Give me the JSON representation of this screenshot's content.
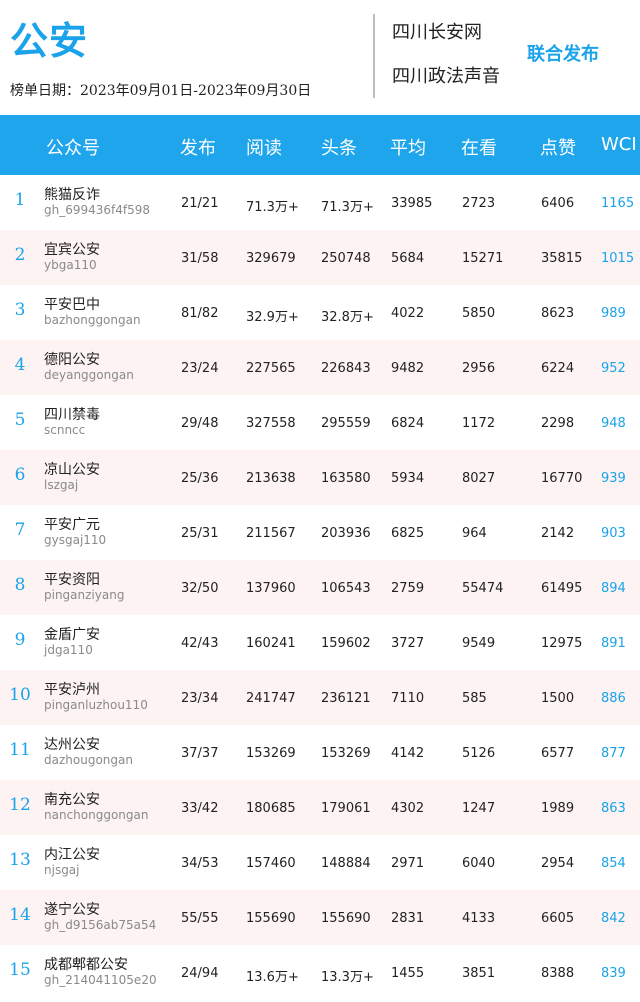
{
  "header": {
    "brand": "公安",
    "date_range": "榜单日期：2023年09月01日-2023年09月30日",
    "publisher_1": "四川长安网",
    "publisher_2": "四川政法声音",
    "joint_label": "联合发布"
  },
  "table": {
    "columns": [
      "公众号",
      "发布",
      "阅读",
      "头条",
      "平均",
      "在看",
      "点赞",
      "WCI"
    ],
    "rows": [
      {
        "rank": "1",
        "name": "熊猫反诈",
        "account": "gh_699436f4f598",
        "publish": "21/21",
        "reads": "71.3万+",
        "headline": "71.3万+",
        "average": "33985",
        "watching": "2723",
        "likes": "6406",
        "wci": "1165"
      },
      {
        "rank": "2",
        "name": "宜宾公安",
        "account": "ybga110",
        "publish": "31/58",
        "reads": "329679",
        "headline": "250748",
        "average": "5684",
        "watching": "15271",
        "likes": "35815",
        "wci": "1015"
      },
      {
        "rank": "3",
        "name": "平安巴中",
        "account": "bazhonggongan",
        "publish": "81/82",
        "reads": "32.9万+",
        "headline": "32.8万+",
        "average": "4022",
        "watching": "5850",
        "likes": "8623",
        "wci": "989"
      },
      {
        "rank": "4",
        "name": "德阳公安",
        "account": "deyanggongan",
        "publish": "23/24",
        "reads": "227565",
        "headline": "226843",
        "average": "9482",
        "watching": "2956",
        "likes": "6224",
        "wci": "952"
      },
      {
        "rank": "5",
        "name": "四川禁毒",
        "account": "scnncc",
        "publish": "29/48",
        "reads": "327558",
        "headline": "295559",
        "average": "6824",
        "watching": "1172",
        "likes": "2298",
        "wci": "948"
      },
      {
        "rank": "6",
        "name": "凉山公安",
        "account": "lszgaj",
        "publish": "25/36",
        "reads": "213638",
        "headline": "163580",
        "average": "5934",
        "watching": "8027",
        "likes": "16770",
        "wci": "939"
      },
      {
        "rank": "7",
        "name": "平安广元",
        "account": "gysgaj110",
        "publish": "25/31",
        "reads": "211567",
        "headline": "203936",
        "average": "6825",
        "watching": "964",
        "likes": "2142",
        "wci": "903"
      },
      {
        "rank": "8",
        "name": "平安资阳",
        "account": "pinganziyang",
        "publish": "32/50",
        "reads": "137960",
        "headline": "106543",
        "average": "2759",
        "watching": "55474",
        "likes": "61495",
        "wci": "894"
      },
      {
        "rank": "9",
        "name": "金盾广安",
        "account": "jdga110",
        "publish": "42/43",
        "reads": "160241",
        "headline": "159602",
        "average": "3727",
        "watching": "9549",
        "likes": "12975",
        "wci": "891"
      },
      {
        "rank": "10",
        "name": "平安泸州",
        "account": "pinganluzhou110",
        "publish": "23/34",
        "reads": "241747",
        "headline": "236121",
        "average": "7110",
        "watching": "585",
        "likes": "1500",
        "wci": "886"
      },
      {
        "rank": "11",
        "name": "达州公安",
        "account": "dazhougongan",
        "publish": "37/37",
        "reads": "153269",
        "headline": "153269",
        "average": "4142",
        "watching": "5126",
        "likes": "6577",
        "wci": "877"
      },
      {
        "rank": "12",
        "name": "南充公安",
        "account": "nanchonggongan",
        "publish": "33/42",
        "reads": "180685",
        "headline": "179061",
        "average": "4302",
        "watching": "1247",
        "likes": "1989",
        "wci": "863"
      },
      {
        "rank": "13",
        "name": "内江公安",
        "account": "njsgaj",
        "publish": "34/53",
        "reads": "157460",
        "headline": "148884",
        "average": "2971",
        "watching": "6040",
        "likes": "2954",
        "wci": "854"
      },
      {
        "rank": "14",
        "name": "遂宁公安",
        "account": "gh_d9156ab75a54",
        "publish": "55/55",
        "reads": "155690",
        "headline": "155690",
        "average": "2831",
        "watching": "4133",
        "likes": "6605",
        "wci": "842"
      },
      {
        "rank": "15",
        "name": "成都郫都公安",
        "account": "gh_214041105e20",
        "publish": "24/94",
        "reads": "13.6万+",
        "headline": "13.3万+",
        "average": "1455",
        "watching": "3851",
        "likes": "8388",
        "wci": "839"
      }
    ]
  }
}
